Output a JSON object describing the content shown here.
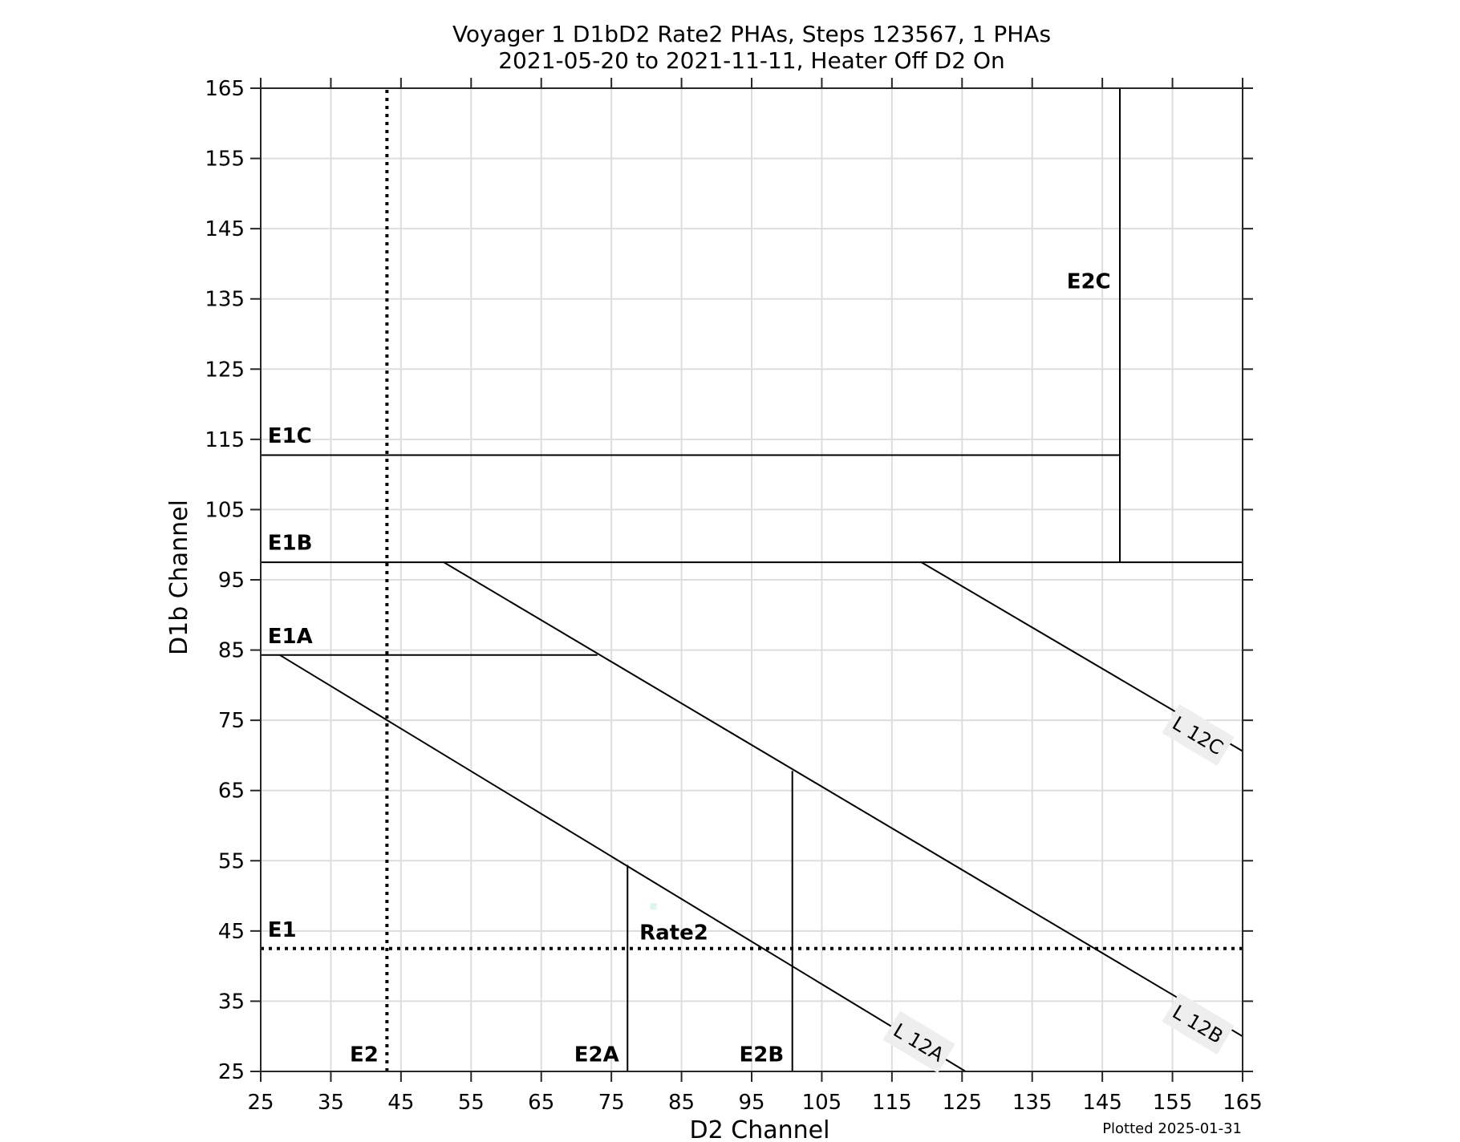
{
  "chart_data": {
    "type": "scatter",
    "title": "Voyager 1 D1bD2 Rate2 PHAs, Steps 123567, 1 PHAs",
    "subtitle": "2021-05-20 to 2021-11-11, Heater Off D2 On",
    "xlabel": "D2 Channel",
    "ylabel": "D1b Channel",
    "xlim": [
      25,
      165
    ],
    "ylim": [
      25,
      165
    ],
    "xticks": [
      25,
      35,
      45,
      55,
      65,
      75,
      85,
      95,
      105,
      115,
      125,
      135,
      145,
      155,
      165
    ],
    "yticks": [
      25,
      35,
      45,
      55,
      65,
      75,
      85,
      95,
      105,
      115,
      125,
      135,
      145,
      155,
      165
    ],
    "grid": true,
    "footnote": "Plotted 2025-01-31",
    "points": [
      {
        "x": 81,
        "y": 48.5,
        "color": "#dff4f1"
      }
    ],
    "boundary_lines": [
      {
        "name": "E1C",
        "style": "solid",
        "x": [
          25,
          147.5
        ],
        "y": [
          112.75,
          112.75
        ]
      },
      {
        "name": "E1B",
        "style": "solid",
        "x": [
          25,
          165
        ],
        "y": [
          97.5,
          97.5
        ]
      },
      {
        "name": "E1A",
        "style": "solid",
        "x": [
          25,
          73
        ],
        "y": [
          84.3,
          84.3
        ]
      },
      {
        "name": "E2C",
        "style": "solid",
        "x": [
          147.5,
          147.5
        ],
        "y": [
          97.5,
          165
        ]
      },
      {
        "name": "E2A",
        "style": "solid",
        "x": [
          77.3,
          77.3
        ],
        "y": [
          25,
          54.4
        ]
      },
      {
        "name": "E2B",
        "style": "solid",
        "x": [
          100.8,
          100.8
        ],
        "y": [
          25,
          67.8
        ]
      },
      {
        "name": "E1",
        "style": "dotted",
        "x": [
          25,
          165
        ],
        "y": [
          42.5,
          42.5
        ]
      },
      {
        "name": "E2",
        "style": "dotted",
        "x": [
          43,
          43
        ],
        "y": [
          25,
          165
        ]
      },
      {
        "name": "L 12A",
        "style": "solid",
        "x": [
          27.7,
          125.5
        ],
        "y": [
          84.3,
          25
        ]
      },
      {
        "name": "L 12B",
        "style": "solid",
        "x": [
          51.1,
          165
        ],
        "y": [
          97.5,
          30
        ]
      },
      {
        "name": "L 12C",
        "style": "solid",
        "x": [
          119.2,
          165
        ],
        "y": [
          97.5,
          70.6
        ]
      }
    ],
    "region_labels": [
      {
        "text": "E1C",
        "x": 26,
        "y": 114.5
      },
      {
        "text": "E1B",
        "x": 26,
        "y": 99.3
      },
      {
        "text": "E1A",
        "x": 26,
        "y": 86
      },
      {
        "text": "E1",
        "x": 26,
        "y": 44.2
      },
      {
        "text": "E2C",
        "x": 146.2,
        "y": 136.5,
        "anchor": "end"
      },
      {
        "text": "E2",
        "x": 41.8,
        "y": 26.4,
        "anchor": "end"
      },
      {
        "text": "E2A",
        "x": 76.1,
        "y": 26.4,
        "anchor": "end"
      },
      {
        "text": "E2B",
        "x": 99.6,
        "y": 26.4,
        "anchor": "end"
      },
      {
        "text": "Rate2",
        "x": 79,
        "y": 43.8
      }
    ],
    "line_labels": [
      {
        "text": "L 12A",
        "x": 118.8,
        "y": 29.1,
        "angle": 31
      },
      {
        "text": "L 12B",
        "x": 158.6,
        "y": 31.7,
        "angle": 31
      },
      {
        "text": "L 12C",
        "x": 158.6,
        "y": 72.8,
        "angle": 31
      }
    ]
  },
  "colors": {
    "axis": "#262626",
    "grid": "#dddddd",
    "line": "#000000",
    "label_box": "#eeeeee",
    "background": "#ffffff"
  }
}
